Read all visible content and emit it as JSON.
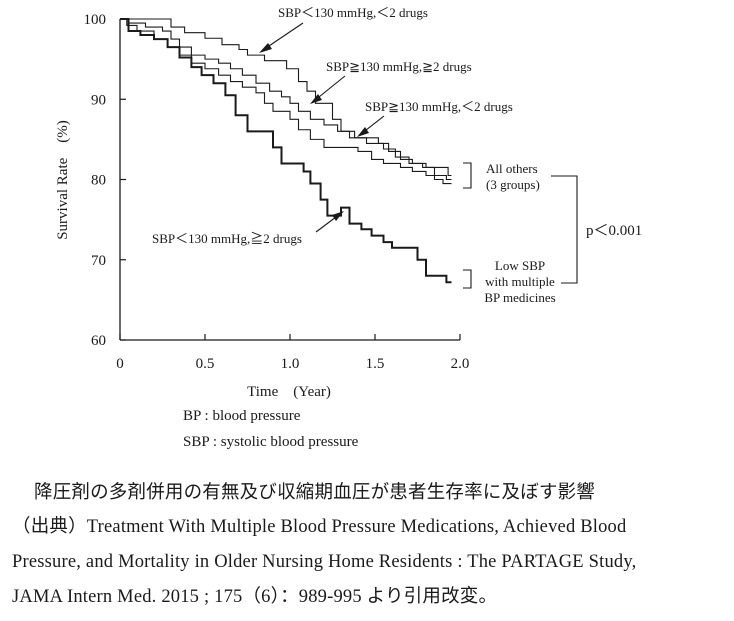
{
  "chart_data": {
    "type": "line",
    "subtype": "kaplan-meier step curves",
    "xlabel": "Time　(Year)",
    "ylabel": "Survival Rate　(%)",
    "xlim": [
      0,
      2.0
    ],
    "ylim": [
      60,
      100
    ],
    "xticks": [
      "0",
      "0.5",
      "1.0",
      "1.5",
      "2.0"
    ],
    "yticks": [
      "60",
      "70",
      "80",
      "90",
      "100"
    ],
    "grid": false,
    "series": [
      {
        "name": "SBP＜130 mmHg,＜2 drugs",
        "x": [
          0,
          0.1,
          0.3,
          0.38,
          0.5,
          0.6,
          0.7,
          0.75,
          0.85,
          0.98,
          1.05,
          1.1,
          1.15,
          1.25,
          1.3,
          1.38,
          1.45,
          1.52,
          1.58,
          1.65,
          1.72,
          1.8,
          1.88,
          1.93,
          1.95
        ],
        "y": [
          100,
          100,
          99,
          98.3,
          97.6,
          96.8,
          96.2,
          95.5,
          94.8,
          93.8,
          92.2,
          91,
          89.5,
          87.5,
          86,
          85.2,
          85.2,
          84.5,
          83.5,
          82.5,
          82,
          81.5,
          81.5,
          80.5,
          80.5
        ]
      },
      {
        "name": "SBP≧130 mmHg,≧2 drugs",
        "x": [
          0,
          0.05,
          0.15,
          0.25,
          0.3,
          0.35,
          0.42,
          0.5,
          0.58,
          0.65,
          0.72,
          0.8,
          0.88,
          0.95,
          1.0,
          1.05,
          1.12,
          1.2,
          1.28,
          1.35,
          1.45,
          1.55,
          1.62,
          1.7,
          1.78,
          1.85,
          1.92,
          1.95
        ],
        "y": [
          100,
          99.5,
          99,
          98.5,
          97.5,
          96.5,
          95.5,
          95,
          94.5,
          93.8,
          93,
          92,
          91,
          90.3,
          89.5,
          88.5,
          87.5,
          86.8,
          86,
          85.2,
          84.5,
          83.8,
          82.8,
          82,
          81.5,
          80.5,
          80,
          80
        ]
      },
      {
        "name": "SBP≧130 mmHg,＜2 drugs",
        "x": [
          0,
          0.04,
          0.1,
          0.2,
          0.28,
          0.35,
          0.42,
          0.5,
          0.58,
          0.65,
          0.72,
          0.8,
          0.85,
          0.9,
          1.0,
          1.05,
          1.12,
          1.2,
          1.3,
          1.4,
          1.48,
          1.55,
          1.65,
          1.72,
          1.8,
          1.85,
          1.9,
          1.95
        ],
        "y": [
          100,
          99.2,
          98.5,
          97.5,
          96.5,
          95.5,
          94.5,
          93.8,
          93,
          92.2,
          91.5,
          90.8,
          89.5,
          88.5,
          87.5,
          86.2,
          85,
          84,
          84,
          83.5,
          82.5,
          82,
          81.5,
          81,
          80.5,
          80,
          79.5,
          79.5
        ]
      },
      {
        "name": "SBP＜130 mmHg,≧2 drugs",
        "x": [
          0,
          0.05,
          0.12,
          0.2,
          0.28,
          0.35,
          0.42,
          0.48,
          0.55,
          0.62,
          0.68,
          0.75,
          0.82,
          0.9,
          0.95,
          1.0,
          1.08,
          1.12,
          1.18,
          1.22,
          1.3,
          1.35,
          1.42,
          1.48,
          1.55,
          1.6,
          1.68,
          1.75,
          1.8,
          1.92,
          1.95
        ],
        "y": [
          100,
          98.5,
          98,
          97.5,
          96.5,
          95.2,
          94,
          93,
          92,
          90.5,
          88,
          86,
          86,
          84,
          82,
          82,
          81,
          79.5,
          77.5,
          75.5,
          76.5,
          74.5,
          73.8,
          73,
          72.2,
          71.5,
          71.5,
          70,
          68,
          67.2,
          67.2
        ]
      }
    ],
    "annotations": {
      "group_all_others": "All others\n(3 groups)",
      "group_low_sbp": "Low SBP\nwith multiple\nBP medicines",
      "p_value": "p＜0.001"
    }
  },
  "notes": {
    "bp": "BP : blood pressure",
    "sbp": "SBP : systolic blood pressure"
  },
  "caption": {
    "title": "降圧剤の多剤併用の有無及び収縮期血圧が患者生存率に及ぼす影響",
    "source_line1": "（出典）Treatment With Multiple Blood Pressure Medications, Achieved Blood",
    "source_line2": "Pressure, and Mortality in Older Nursing Home Residents : The PARTAGE Study,",
    "source_line3": "JAMA Intern Med. 2015 ; 175（6）：989-995 より引用改変。"
  }
}
